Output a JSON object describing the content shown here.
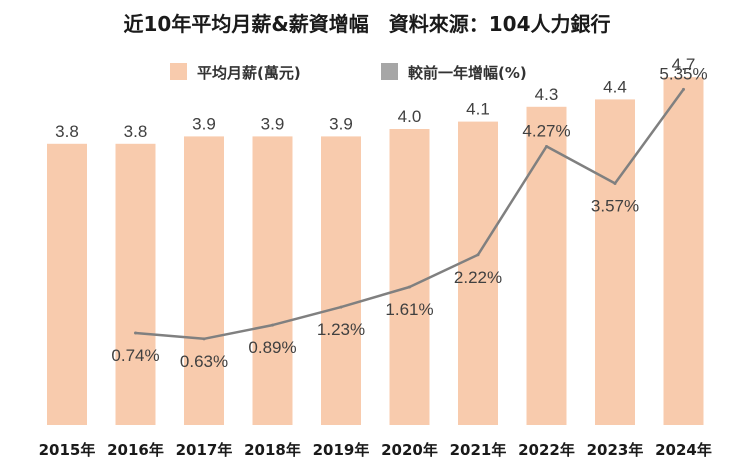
{
  "title": "近10年平均月薪&薪資增幅　資料來源：104人力銀行",
  "legend": {
    "bar_label": "平均月薪(萬元)",
    "line_label": "較前一年增幅(%)"
  },
  "colors": {
    "bar": "#F8CBAD",
    "line": "#808080",
    "legend_line": "#A6A6A6",
    "text": "#404040"
  },
  "chart_data": {
    "type": "bar",
    "title": "近10年平均月薪&薪資增幅　資料來源：104人力銀行",
    "categories": [
      "2015年",
      "2016年",
      "2017年",
      "2018年",
      "2019年",
      "2020年",
      "2021年",
      "2022年",
      "2023年",
      "2024年"
    ],
    "series": [
      {
        "name": "平均月薪(萬元)",
        "type": "bar",
        "values": [
          3.8,
          3.8,
          3.9,
          3.9,
          3.9,
          4.0,
          4.1,
          4.3,
          4.4,
          4.7
        ],
        "labels": [
          "3.8",
          "3.8",
          "3.9",
          "3.9",
          "3.9",
          "4.0",
          "4.1",
          "4.3",
          "4.4",
          "4.7"
        ]
      },
      {
        "name": "較前一年增幅(%)",
        "type": "line",
        "values": [
          null,
          0.74,
          0.63,
          0.89,
          1.23,
          1.61,
          2.22,
          4.27,
          3.57,
          5.35
        ],
        "labels": [
          "",
          "0.74%",
          "0.63%",
          "0.89%",
          "1.23%",
          "1.61%",
          "2.22%",
          "4.27%",
          "3.57%",
          "5.35%"
        ]
      }
    ],
    "bar_ylim": [
      0,
      5.0
    ],
    "line_ylim": [
      -1.0,
      6.0
    ],
    "grid": false,
    "legend_position": "top"
  }
}
